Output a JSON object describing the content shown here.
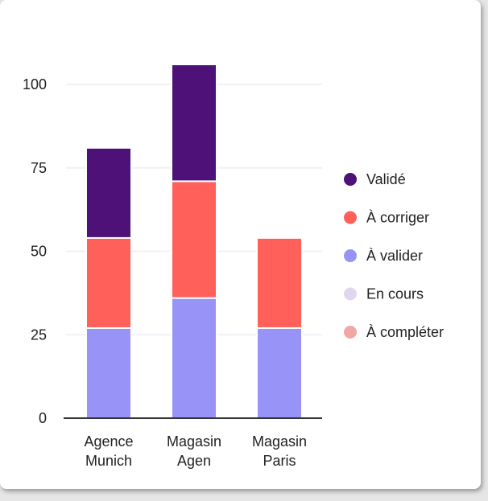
{
  "chart_data": {
    "type": "bar",
    "stacked": true,
    "categories": [
      [
        "Agence",
        "Munich"
      ],
      [
        "Magasin",
        "Agen"
      ],
      [
        "Magasin",
        "Paris"
      ]
    ],
    "series": [
      {
        "name": "À valider",
        "color": "#9894f7",
        "values": [
          27,
          36,
          27
        ]
      },
      {
        "name": "À corriger",
        "color": "#ff6059",
        "values": [
          27,
          35,
          27
        ]
      },
      {
        "name": "Validé",
        "color": "#4d1178",
        "values": [
          27,
          35,
          0
        ]
      },
      {
        "name": "En cours",
        "color": "#e2d6ee",
        "values": [
          0,
          0,
          0
        ]
      },
      {
        "name": "À compléter",
        "color": "#f2a7a7",
        "values": [
          0,
          0,
          0
        ]
      }
    ],
    "legend_order": [
      "Validé",
      "À corriger",
      "À valider",
      "En cours",
      "À compléter"
    ],
    "yticks": [
      0,
      25,
      50,
      75,
      100
    ],
    "ylim": [
      0,
      108
    ],
    "grid": true,
    "legend_position": "right",
    "title": "",
    "xlabel": "",
    "ylabel": ""
  }
}
